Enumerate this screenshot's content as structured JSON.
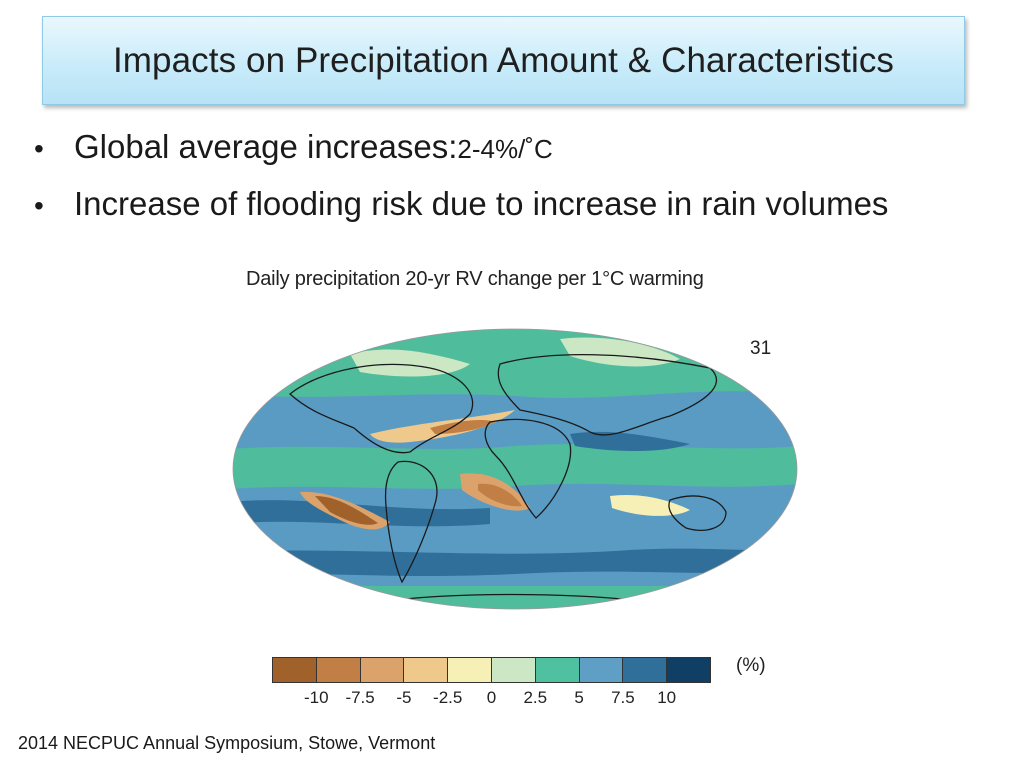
{
  "slide": {
    "title": "Impacts on Precipitation Amount & Characteristics",
    "bullets": [
      {
        "text": "Global average increases: ",
        "value": "2-4%/˚C"
      },
      {
        "text": "Increase of flooding risk due to increase in rain volumes"
      }
    ],
    "footer": "2014 NECPUC Annual Symposium, Stowe, Vermont"
  },
  "figure": {
    "title": "Daily precipitation 20-yr RV change per 1°C warming",
    "panel_number": "31",
    "colorbar": {
      "colors": [
        "#a0612b",
        "#c17f45",
        "#dba36b",
        "#efc98c",
        "#f7f0b6",
        "#cbe7c4",
        "#4fc1a1",
        "#5f9fc6",
        "#2f6f99",
        "#103f66"
      ],
      "tick_labels": [
        "-10",
        "-7.5",
        "-5",
        "-2.5",
        "0",
        "2.5",
        "5",
        "7.5",
        "10"
      ],
      "unit": "(%)"
    }
  }
}
